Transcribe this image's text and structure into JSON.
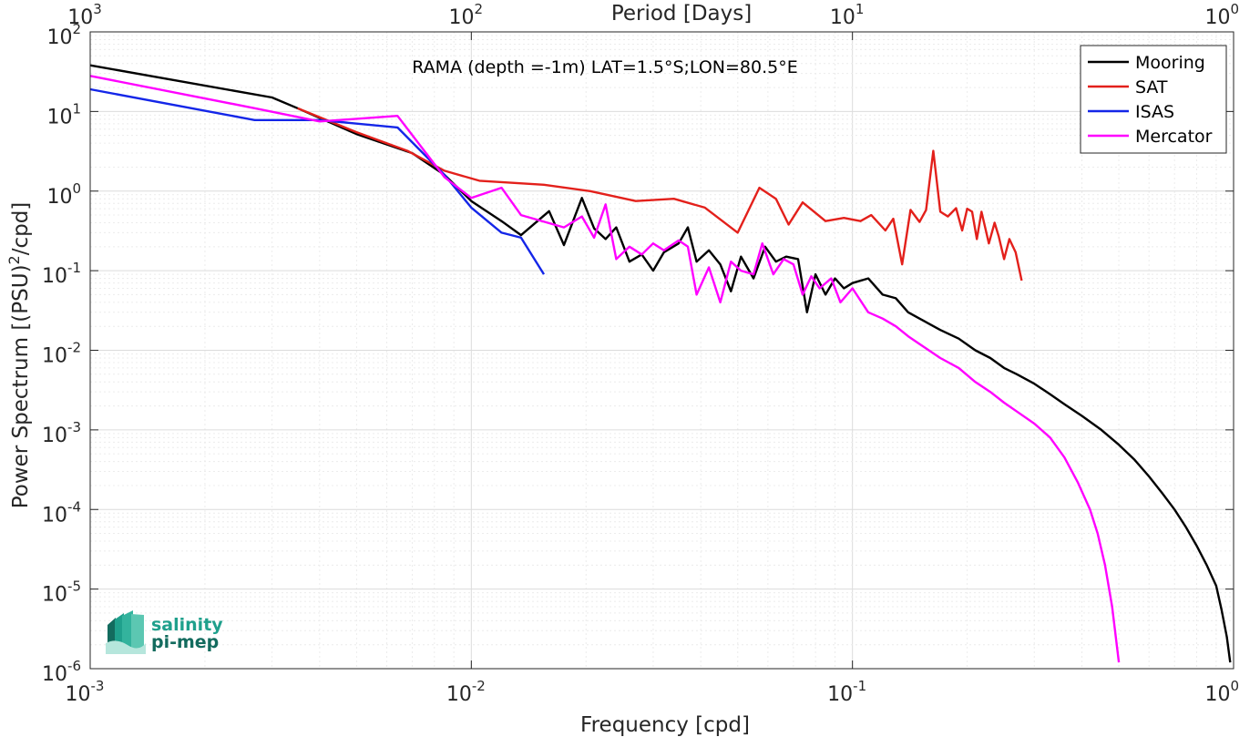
{
  "chart_data": {
    "type": "line",
    "title": "RAMA (depth =-1m) LAT=1.5°S;LON=80.5°E",
    "xlabel": "Frequency [cpd]",
    "ylabel": "Power Spectrum [(PSU)2/cpd]",
    "ylabel_main": "Power Spectrum [(PSU)",
    "ylabel_sup": "2",
    "ylabel_end": "/cpd]",
    "x2label": "Period [Days]",
    "xscale": "log",
    "yscale": "log",
    "xlim": [
      0.001,
      1
    ],
    "ylim": [
      1e-06,
      100
    ],
    "grid": true,
    "legend_position": "top-right",
    "x_ticks": [
      {
        "base": "10",
        "exp": "-3",
        "value": 0.001
      },
      {
        "base": "10",
        "exp": "-2",
        "value": 0.01
      },
      {
        "base": "10",
        "exp": "-1",
        "value": 0.1
      },
      {
        "base": "10",
        "exp": "0",
        "value": 1
      }
    ],
    "x2_ticks": [
      {
        "base": "10",
        "exp": "3",
        "period": 1000
      },
      {
        "base": "10",
        "exp": "2",
        "period": 100
      },
      {
        "base": "10",
        "exp": "1",
        "period": 10
      },
      {
        "base": "10",
        "exp": "0",
        "period": 1
      }
    ],
    "y_ticks": [
      {
        "base": "10",
        "exp": "2",
        "value": 100
      },
      {
        "base": "10",
        "exp": "1",
        "value": 10
      },
      {
        "base": "10",
        "exp": "0",
        "value": 1
      },
      {
        "base": "10",
        "exp": "-1",
        "value": 0.1
      },
      {
        "base": "10",
        "exp": "-2",
        "value": 0.01
      },
      {
        "base": "10",
        "exp": "-3",
        "value": 0.001
      },
      {
        "base": "10",
        "exp": "-4",
        "value": 0.0001
      },
      {
        "base": "10",
        "exp": "-5",
        "value": 1e-05
      },
      {
        "base": "10",
        "exp": "-6",
        "value": 1e-06
      }
    ],
    "series": [
      {
        "name": "Mooring",
        "color": "#000000",
        "points": [
          [
            0.001,
            38
          ],
          [
            0.003,
            15
          ],
          [
            0.0035,
            11
          ],
          [
            0.005,
            5.2
          ],
          [
            0.007,
            3
          ],
          [
            0.0085,
            1.6
          ],
          [
            0.01,
            0.75
          ],
          [
            0.012,
            0.42
          ],
          [
            0.0135,
            0.28
          ],
          [
            0.016,
            0.56
          ],
          [
            0.0175,
            0.21
          ],
          [
            0.0195,
            0.82
          ],
          [
            0.021,
            0.34
          ],
          [
            0.0225,
            0.25
          ],
          [
            0.024,
            0.35
          ],
          [
            0.026,
            0.13
          ],
          [
            0.028,
            0.16
          ],
          [
            0.03,
            0.1
          ],
          [
            0.032,
            0.17
          ],
          [
            0.035,
            0.22
          ],
          [
            0.037,
            0.35
          ],
          [
            0.039,
            0.13
          ],
          [
            0.042,
            0.18
          ],
          [
            0.045,
            0.12
          ],
          [
            0.048,
            0.055
          ],
          [
            0.051,
            0.15
          ],
          [
            0.055,
            0.08
          ],
          [
            0.059,
            0.2
          ],
          [
            0.063,
            0.13
          ],
          [
            0.067,
            0.15
          ],
          [
            0.072,
            0.14
          ],
          [
            0.076,
            0.03
          ],
          [
            0.08,
            0.09
          ],
          [
            0.085,
            0.05
          ],
          [
            0.09,
            0.08
          ],
          [
            0.095,
            0.06
          ],
          [
            0.1,
            0.07
          ],
          [
            0.11,
            0.08
          ],
          [
            0.12,
            0.05
          ],
          [
            0.13,
            0.045
          ],
          [
            0.14,
            0.03
          ],
          [
            0.15,
            0.025
          ],
          [
            0.17,
            0.018
          ],
          [
            0.19,
            0.014
          ],
          [
            0.21,
            0.01
          ],
          [
            0.23,
            0.008
          ],
          [
            0.25,
            0.006
          ],
          [
            0.27,
            0.005
          ],
          [
            0.3,
            0.0038
          ],
          [
            0.33,
            0.0028
          ],
          [
            0.36,
            0.0021
          ],
          [
            0.4,
            0.0015
          ],
          [
            0.45,
            0.001
          ],
          [
            0.5,
            0.00065
          ],
          [
            0.55,
            0.00042
          ],
          [
            0.6,
            0.00026
          ],
          [
            0.65,
            0.00016
          ],
          [
            0.7,
            0.0001
          ],
          [
            0.75,
            6e-05
          ],
          [
            0.8,
            3.5e-05
          ],
          [
            0.85,
            2e-05
          ],
          [
            0.9,
            1.1e-05
          ],
          [
            0.93,
            5.5e-06
          ],
          [
            0.96,
            2.5e-06
          ],
          [
            0.98,
            1.2e-06
          ]
        ]
      },
      {
        "name": "SAT",
        "color": "#e3201b",
        "points": [
          [
            0.0035,
            11
          ],
          [
            0.005,
            5.5
          ],
          [
            0.0068,
            3.2
          ],
          [
            0.0085,
            1.8
          ],
          [
            0.0105,
            1.35
          ],
          [
            0.0155,
            1.2
          ],
          [
            0.0205,
            1.0
          ],
          [
            0.027,
            0.75
          ],
          [
            0.034,
            0.8
          ],
          [
            0.041,
            0.62
          ],
          [
            0.05,
            0.3
          ],
          [
            0.057,
            1.1
          ],
          [
            0.063,
            0.8
          ],
          [
            0.068,
            0.38
          ],
          [
            0.074,
            0.72
          ],
          [
            0.085,
            0.42
          ],
          [
            0.095,
            0.46
          ],
          [
            0.105,
            0.42
          ],
          [
            0.112,
            0.5
          ],
          [
            0.122,
            0.32
          ],
          [
            0.128,
            0.45
          ],
          [
            0.135,
            0.12
          ],
          [
            0.142,
            0.58
          ],
          [
            0.15,
            0.41
          ],
          [
            0.156,
            0.58
          ],
          [
            0.163,
            3.2
          ],
          [
            0.17,
            0.55
          ],
          [
            0.178,
            0.48
          ],
          [
            0.187,
            0.61
          ],
          [
            0.194,
            0.32
          ],
          [
            0.2,
            0.6
          ],
          [
            0.206,
            0.55
          ],
          [
            0.212,
            0.25
          ],
          [
            0.218,
            0.55
          ],
          [
            0.228,
            0.22
          ],
          [
            0.236,
            0.4
          ],
          [
            0.242,
            0.27
          ],
          [
            0.25,
            0.14
          ],
          [
            0.258,
            0.25
          ],
          [
            0.268,
            0.17
          ],
          [
            0.278,
            0.075
          ]
        ]
      },
      {
        "name": "ISAS",
        "color": "#1426e8",
        "points": [
          [
            0.001,
            19
          ],
          [
            0.0027,
            7.8
          ],
          [
            0.004,
            7.8
          ],
          [
            0.0064,
            6.3
          ],
          [
            0.0085,
            1.6
          ],
          [
            0.01,
            0.62
          ],
          [
            0.012,
            0.3
          ],
          [
            0.0135,
            0.26
          ],
          [
            0.0155,
            0.09
          ]
        ]
      },
      {
        "name": "Mercator",
        "color": "#ff00ff",
        "points": [
          [
            0.001,
            28
          ],
          [
            0.0027,
            11
          ],
          [
            0.004,
            7.5
          ],
          [
            0.0064,
            8.8
          ],
          [
            0.0085,
            1.5
          ],
          [
            0.01,
            0.82
          ],
          [
            0.012,
            1.1
          ],
          [
            0.0135,
            0.5
          ],
          [
            0.0175,
            0.35
          ],
          [
            0.0195,
            0.48
          ],
          [
            0.021,
            0.26
          ],
          [
            0.0225,
            0.68
          ],
          [
            0.024,
            0.14
          ],
          [
            0.026,
            0.2
          ],
          [
            0.028,
            0.16
          ],
          [
            0.03,
            0.22
          ],
          [
            0.032,
            0.18
          ],
          [
            0.035,
            0.24
          ],
          [
            0.037,
            0.2
          ],
          [
            0.039,
            0.05
          ],
          [
            0.042,
            0.11
          ],
          [
            0.045,
            0.04
          ],
          [
            0.048,
            0.13
          ],
          [
            0.051,
            0.1
          ],
          [
            0.055,
            0.09
          ],
          [
            0.058,
            0.22
          ],
          [
            0.062,
            0.09
          ],
          [
            0.066,
            0.14
          ],
          [
            0.07,
            0.12
          ],
          [
            0.074,
            0.05
          ],
          [
            0.078,
            0.085
          ],
          [
            0.082,
            0.06
          ],
          [
            0.088,
            0.08
          ],
          [
            0.093,
            0.04
          ],
          [
            0.1,
            0.06
          ],
          [
            0.11,
            0.03
          ],
          [
            0.12,
            0.025
          ],
          [
            0.13,
            0.02
          ],
          [
            0.14,
            0.015
          ],
          [
            0.15,
            0.012
          ],
          [
            0.17,
            0.008
          ],
          [
            0.19,
            0.006
          ],
          [
            0.21,
            0.004
          ],
          [
            0.23,
            0.003
          ],
          [
            0.25,
            0.0022
          ],
          [
            0.27,
            0.0017
          ],
          [
            0.3,
            0.0012
          ],
          [
            0.33,
            0.0008
          ],
          [
            0.36,
            0.00045
          ],
          [
            0.39,
            0.00022
          ],
          [
            0.42,
            0.0001
          ],
          [
            0.44,
            5e-05
          ],
          [
            0.46,
            2e-05
          ],
          [
            0.48,
            6e-06
          ],
          [
            0.5,
            1.2e-06
          ]
        ]
      }
    ]
  },
  "legend": {
    "labels": [
      "Mooring",
      "SAT",
      "ISAS",
      "Mercator"
    ]
  },
  "logo": {
    "line1": "salinity",
    "line2": "pi-mep",
    "color": "#1fa08c",
    "color_dark": "#136b5e"
  }
}
